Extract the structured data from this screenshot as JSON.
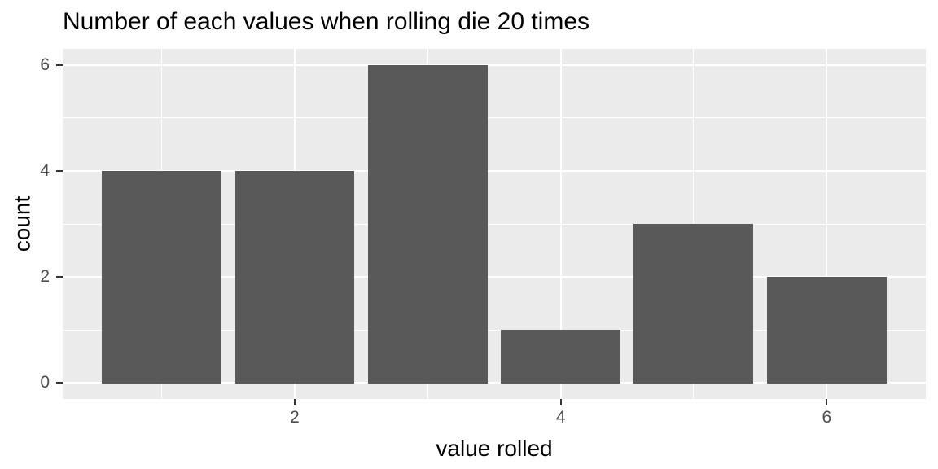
{
  "chart_data": {
    "type": "bar",
    "title": "Number of each values when rolling die 20 times",
    "xlabel": "value rolled",
    "ylabel": "count",
    "categories": [
      1,
      2,
      3,
      4,
      5,
      6
    ],
    "values": [
      4,
      4,
      6,
      1,
      3,
      2
    ],
    "bar_width": 0.9,
    "xlim": [
      0.255,
      6.745
    ],
    "ylim": [
      -0.3,
      6.3
    ],
    "x_tick_values": [
      2,
      4,
      6
    ],
    "x_tick_labels": [
      "2",
      "4",
      "6"
    ],
    "y_tick_values": [
      0,
      2,
      4,
      6
    ],
    "y_tick_labels": [
      "0",
      "2",
      "4",
      "6"
    ],
    "x_minor_gridlines": [
      1,
      3,
      5
    ],
    "y_minor_gridlines": [
      1,
      3,
      5
    ],
    "grid": true,
    "legend_position": "none",
    "style": "ggplot2-theme-grey",
    "colors": {
      "bar_fill": "#595959",
      "panel_background": "#EBEBEB",
      "gridline": "#FFFFFF",
      "axis_text": "#4D4D4D",
      "tick_mark": "#333333",
      "title_text": "#000000",
      "plot_background": "#FFFFFF"
    }
  }
}
